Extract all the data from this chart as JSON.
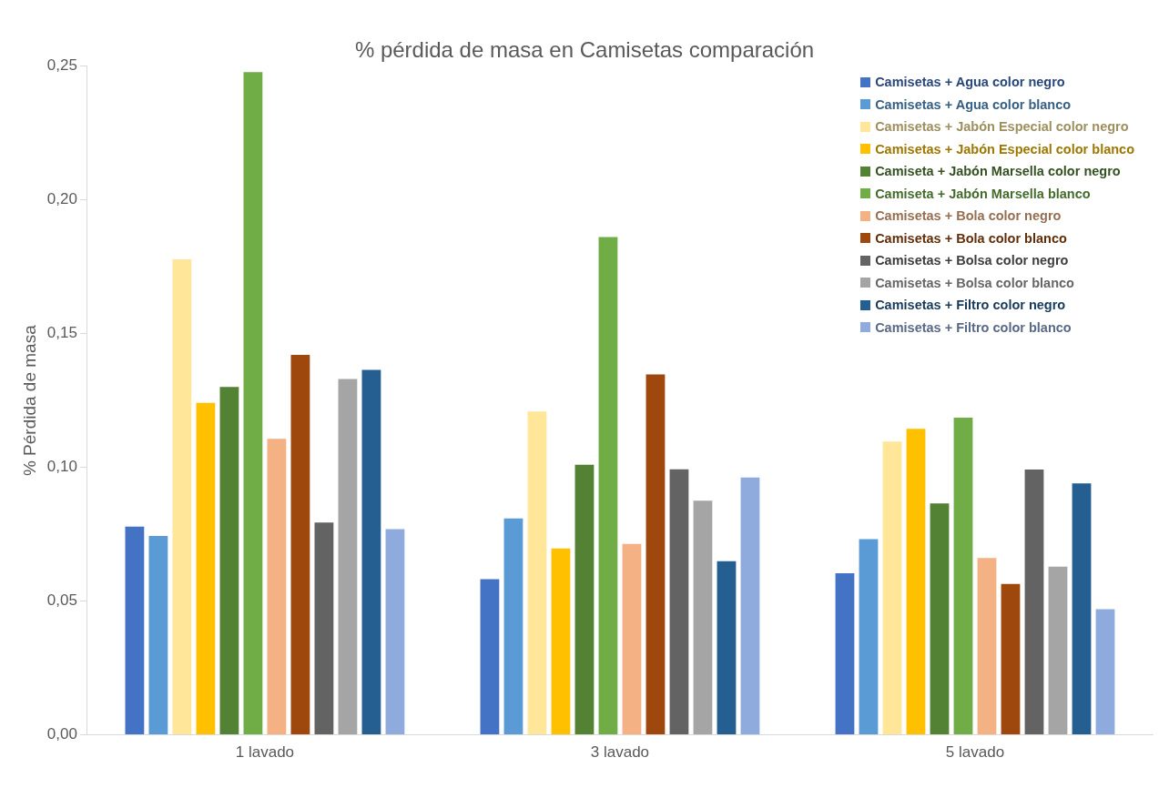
{
  "chart_data": {
    "type": "bar",
    "title": "% pérdida de masa en Camisetas comparación",
    "ylabel": "% Pérdida de masa",
    "categories": [
      "1 lavado",
      "3 lavado",
      "5 lavado"
    ],
    "series": [
      {
        "name": "Camisetas + Agua color negro",
        "color": "#4472c4",
        "values": [
          0.0779,
          0.0582,
          0.0604
        ]
      },
      {
        "name": "Camisetas + Agua color blanco",
        "color": "#5b9bd5",
        "values": [
          0.0744,
          0.0809,
          0.0732
        ]
      },
      {
        "name": "Camisetas + Jabón Especial color negro",
        "color": "#ffe699",
        "values": [
          0.1778,
          0.1209,
          0.1097
        ]
      },
      {
        "name": "Camisetas + Jabón Especial color blanco",
        "color": "#ffc000",
        "values": [
          0.1241,
          0.0697,
          0.1144
        ]
      },
      {
        "name": "Camiseta + Jabón Marsella color negro",
        "color": "#548235",
        "values": [
          0.1301,
          0.101,
          0.0865
        ]
      },
      {
        "name": "Camiseta + Jabón Marsella blanco",
        "color": "#70ad47",
        "values": [
          0.2478,
          0.1861,
          0.1186
        ]
      },
      {
        "name": "Camisetas + Bola color negro",
        "color": "#f4b183",
        "values": [
          0.1107,
          0.0714,
          0.0661
        ]
      },
      {
        "name": "Camisetas + Bola color blanco",
        "color": "#9e480e",
        "values": [
          0.1421,
          0.1348,
          0.0564
        ]
      },
      {
        "name": "Camisetas + Bolsa color negro",
        "color": "#636363",
        "values": [
          0.0794,
          0.0993,
          0.0992
        ]
      },
      {
        "name": "Camisetas + Bolsa color blanco",
        "color": "#a5a5a5",
        "values": [
          0.1331,
          0.0876,
          0.0629
        ]
      },
      {
        "name": "Camisetas + Filtro color negro",
        "color": "#255e91",
        "values": [
          0.1365,
          0.0649,
          0.094
        ]
      },
      {
        "name": "Camisetas + Filtro color blanco",
        "color": "#8faadc",
        "values": [
          0.0769,
          0.0962,
          0.047
        ]
      }
    ],
    "ylim": [
      0,
      0.25
    ],
    "yticks": [
      {
        "value": 0,
        "label": "0,00"
      },
      {
        "value": 0.05,
        "label": "0,05"
      },
      {
        "value": 0.1,
        "label": "0,10"
      },
      {
        "value": 0.15,
        "label": "0,15"
      },
      {
        "value": 0.2,
        "label": "0,20"
      },
      {
        "value": 0.25,
        "label": "0,25"
      }
    ],
    "grid": false,
    "legend": "top right"
  }
}
